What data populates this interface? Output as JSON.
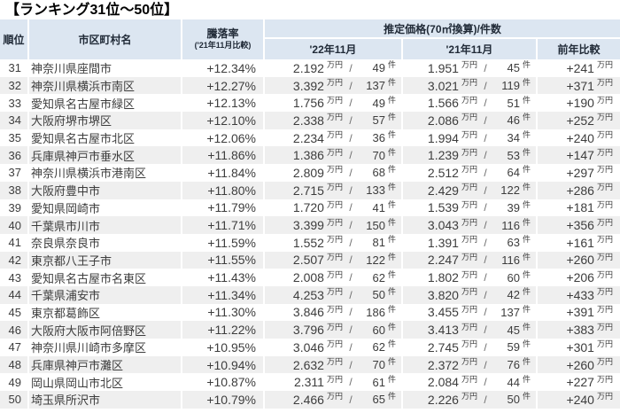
{
  "title": "【ランキング31位〜50位】",
  "colors": {
    "header_bg": "#dce6f1",
    "row_stripe": "#efefef",
    "header_text": "#212b38",
    "body_text": "#3d3d3d"
  },
  "table": {
    "headers": {
      "rank": "順位",
      "name": "市区町村名",
      "rate": "騰落率",
      "rate_sub": "('21年11月比較)",
      "price_group": "推定価格(70㎡換算)/件数",
      "col_2022": "'22年11月",
      "col_2021": "'21年11月",
      "col_diff": "前年比較"
    },
    "units": {
      "price": "万円",
      "count": "件",
      "slash": "/"
    },
    "rows": [
      {
        "rank": "31",
        "name": "神奈川県座間市",
        "rate": "+12.34%",
        "p22": "2.192",
        "c22": "49",
        "p21": "1.951",
        "c21": "45",
        "diff": "+241"
      },
      {
        "rank": "32",
        "name": "神奈川県横浜市南区",
        "rate": "+12.27%",
        "p22": "3.392",
        "c22": "137",
        "p21": "3.021",
        "c21": "119",
        "diff": "+371"
      },
      {
        "rank": "33",
        "name": "愛知県名古屋市緑区",
        "rate": "+12.13%",
        "p22": "1.756",
        "c22": "49",
        "p21": "1.566",
        "c21": "51",
        "diff": "+190"
      },
      {
        "rank": "34",
        "name": "大阪府堺市堺区",
        "rate": "+12.10%",
        "p22": "2.338",
        "c22": "57",
        "p21": "2.086",
        "c21": "46",
        "diff": "+252"
      },
      {
        "rank": "35",
        "name": "愛知県名古屋市北区",
        "rate": "+12.06%",
        "p22": "2.234",
        "c22": "36",
        "p21": "1.994",
        "c21": "34",
        "diff": "+240"
      },
      {
        "rank": "36",
        "name": "兵庫県神戸市垂水区",
        "rate": "+11.86%",
        "p22": "1.386",
        "c22": "70",
        "p21": "1.239",
        "c21": "53",
        "diff": "+147"
      },
      {
        "rank": "37",
        "name": "神奈川県横浜市港南区",
        "rate": "+11.84%",
        "p22": "2.809",
        "c22": "68",
        "p21": "2.512",
        "c21": "64",
        "diff": "+297"
      },
      {
        "rank": "38",
        "name": "大阪府豊中市",
        "rate": "+11.80%",
        "p22": "2.715",
        "c22": "133",
        "p21": "2.429",
        "c21": "122",
        "diff": "+286"
      },
      {
        "rank": "39",
        "name": "愛知県岡崎市",
        "rate": "+11.79%",
        "p22": "1.720",
        "c22": "41",
        "p21": "1.539",
        "c21": "39",
        "diff": "+181"
      },
      {
        "rank": "40",
        "name": "千葉県市川市",
        "rate": "+11.71%",
        "p22": "3.399",
        "c22": "150",
        "p21": "3.043",
        "c21": "116",
        "diff": "+356"
      },
      {
        "rank": "41",
        "name": "奈良県奈良市",
        "rate": "+11.59%",
        "p22": "1.552",
        "c22": "81",
        "p21": "1.391",
        "c21": "63",
        "diff": "+161"
      },
      {
        "rank": "42",
        "name": "東京都八王子市",
        "rate": "+11.55%",
        "p22": "2.507",
        "c22": "122",
        "p21": "2.247",
        "c21": "116",
        "diff": "+260"
      },
      {
        "rank": "43",
        "name": "愛知県名古屋市名東区",
        "rate": "+11.43%",
        "p22": "2.008",
        "c22": "62",
        "p21": "1.802",
        "c21": "60",
        "diff": "+206"
      },
      {
        "rank": "44",
        "name": "千葉県浦安市",
        "rate": "+11.34%",
        "p22": "4.253",
        "c22": "50",
        "p21": "3.820",
        "c21": "42",
        "diff": "+433"
      },
      {
        "rank": "45",
        "name": "東京都葛飾区",
        "rate": "+11.30%",
        "p22": "3.846",
        "c22": "186",
        "p21": "3.455",
        "c21": "137",
        "diff": "+391"
      },
      {
        "rank": "46",
        "name": "大阪府大阪市阿倍野区",
        "rate": "+11.22%",
        "p22": "3.796",
        "c22": "60",
        "p21": "3.413",
        "c21": "45",
        "diff": "+383"
      },
      {
        "rank": "47",
        "name": "神奈川県川崎市多摩区",
        "rate": "+10.95%",
        "p22": "3.046",
        "c22": "62",
        "p21": "2.745",
        "c21": "59",
        "diff": "+301"
      },
      {
        "rank": "48",
        "name": "兵庫県神戸市灘区",
        "rate": "+10.94%",
        "p22": "2.632",
        "c22": "70",
        "p21": "2.372",
        "c21": "76",
        "diff": "+260"
      },
      {
        "rank": "49",
        "name": "岡山県岡山市北区",
        "rate": "+10.87%",
        "p22": "2.311",
        "c22": "61",
        "p21": "2.084",
        "c21": "44",
        "diff": "+227"
      },
      {
        "rank": "50",
        "name": "埼玉県所沢市",
        "rate": "+10.79%",
        "p22": "2.466",
        "c22": "65",
        "p21": "2.226",
        "c21": "50",
        "diff": "+240"
      }
    ]
  }
}
